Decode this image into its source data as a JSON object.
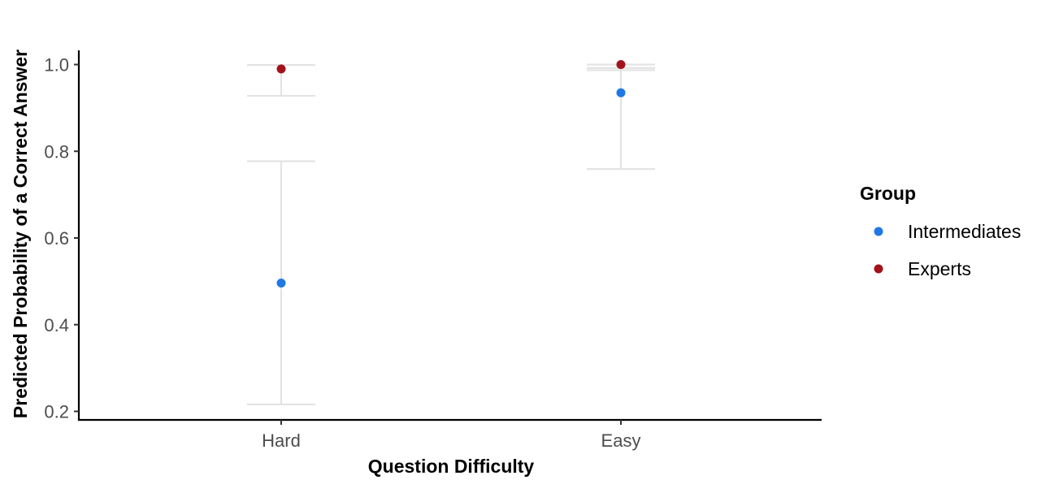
{
  "chart_data": {
    "type": "scatter",
    "subtype": "point with error bars",
    "title": "",
    "xlabel": "Question Difficulty",
    "ylabel": "Predicted Probability of a Correct Answer",
    "categories": [
      "Hard",
      "Easy"
    ],
    "ylim": [
      0.18,
      1.03
    ],
    "yticks": [
      "0.2",
      "0.4",
      "0.6",
      "0.8",
      "1.0"
    ],
    "grid": false,
    "legend": {
      "title": "Group",
      "placement": "right"
    },
    "series": [
      {
        "name": "Intermediates",
        "color": "#1f78e6",
        "values": [
          0.496,
          0.935
        ],
        "lower": [
          0.216,
          0.759
        ],
        "upper": [
          0.777,
          0.987
        ]
      },
      {
        "name": "Experts",
        "color": "#a3121a",
        "values": [
          0.99,
          1.0
        ],
        "lower": [
          0.928,
          0.992
        ],
        "upper": [
          0.999,
          1.0
        ]
      }
    ],
    "errorbar_color": "#e3e3e3"
  }
}
